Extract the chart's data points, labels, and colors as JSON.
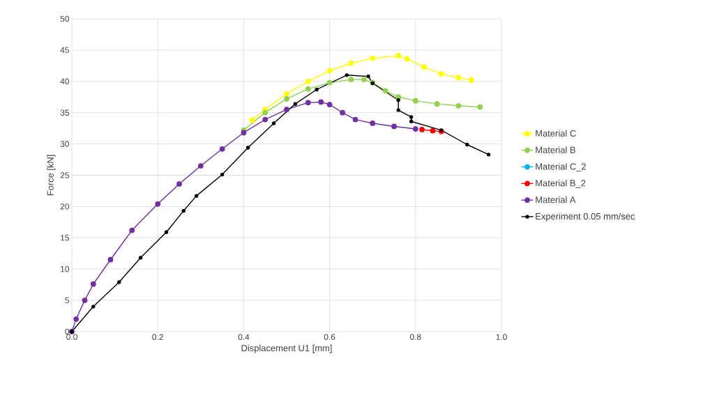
{
  "chart_data": {
    "type": "line",
    "xlabel": "Displacement U1 [mm]",
    "ylabel": "Force [kN]",
    "xlim": [
      0,
      1
    ],
    "ylim": [
      0,
      50
    ],
    "xticks": [
      {
        "value": 0,
        "label": "0.0"
      },
      {
        "value": 0.2,
        "label": "0.2"
      },
      {
        "value": 0.4,
        "label": "0.4"
      },
      {
        "value": 0.6,
        "label": "0.6"
      },
      {
        "value": 0.8,
        "label": "0.8"
      },
      {
        "value": 1,
        "label": "1.0"
      }
    ],
    "yticks": [
      0,
      5,
      10,
      15,
      20,
      25,
      30,
      35,
      40,
      45,
      50
    ],
    "grid": true,
    "legend": "right",
    "marker": "circle",
    "line_style": "solid",
    "series": [
      {
        "name": "Material C",
        "color": "#ffff00",
        "x": [
          0.42,
          0.45,
          0.5,
          0.55,
          0.6,
          0.65,
          0.7,
          0.76,
          0.78,
          0.82,
          0.86,
          0.9,
          0.93
        ],
        "values": [
          33.8,
          35.5,
          38,
          40,
          41.7,
          42.9,
          43.7,
          44.1,
          43.6,
          42.3,
          41.2,
          40.6,
          40.2
        ]
      },
      {
        "name": "Material B",
        "color": "#92d050",
        "x": [
          0.4,
          0.45,
          0.5,
          0.55,
          0.6,
          0.65,
          0.68,
          0.7,
          0.73,
          0.76,
          0.8,
          0.85,
          0.9,
          0.95
        ],
        "values": [
          32.2,
          35,
          37.2,
          38.8,
          39.8,
          40.3,
          40.3,
          39.8,
          38.5,
          37.5,
          36.9,
          36.4,
          36.1,
          35.9
        ]
      },
      {
        "name": "Material C_2",
        "color": "#00b0f0"
      },
      {
        "name": "Material B_2",
        "color": "#ff0000",
        "x": [
          0.815,
          0.84,
          0.86
        ],
        "values": [
          32.3,
          32.1,
          32
        ]
      },
      {
        "name": "Material A",
        "color": "#7030a0",
        "x": [
          0,
          0.01,
          0.03,
          0.05,
          0.09,
          0.14,
          0.2,
          0.25,
          0.3,
          0.35,
          0.4,
          0.45,
          0.5,
          0.55,
          0.58,
          0.6,
          0.63,
          0.66,
          0.7,
          0.75,
          0.8
        ],
        "values": [
          0,
          2,
          5,
          7.6,
          11.5,
          16.2,
          20.4,
          23.6,
          26.5,
          29.2,
          31.8,
          33.9,
          35.5,
          36.6,
          36.7,
          36.3,
          35,
          33.9,
          33.3,
          32.8,
          32.4
        ]
      },
      {
        "name": "Experiment 0.05 mm/sec",
        "color": "#000000",
        "x": [
          0,
          0.05,
          0.11,
          0.16,
          0.22,
          0.26,
          0.29,
          0.35,
          0.41,
          0.47,
          0.52,
          0.57,
          0.64,
          0.69,
          0.7,
          0.76,
          0.76,
          0.79,
          0.79,
          0.86,
          0.92,
          0.97
        ],
        "values": [
          0,
          4,
          7.9,
          11.8,
          15.9,
          19.3,
          21.7,
          25.1,
          29.4,
          33.3,
          36.4,
          38.7,
          41,
          40.8,
          39.7,
          37,
          35.4,
          34.3,
          33.6,
          32.2,
          29.9,
          28.3
        ]
      }
    ]
  }
}
